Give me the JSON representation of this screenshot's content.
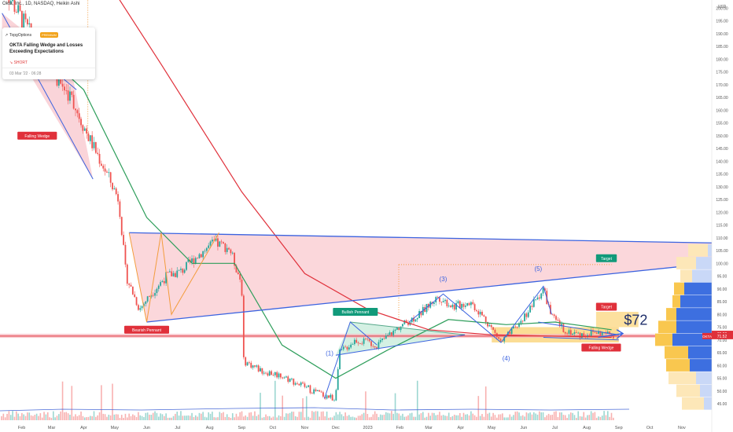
{
  "header": {
    "title": "Okta, Inc., 1D, NASDAQ, Heikin Ashi"
  },
  "idea_card": {
    "author": "TopgOptions",
    "badge": "PREMIUM",
    "title": "OKTA Falling Wedge and Losses Exceeding Expectations",
    "direction": "SHORT",
    "date": "03 Mar '22 · 06:28"
  },
  "colors": {
    "up": "#26a69a",
    "down": "#ef5350",
    "sma_fast": "#2e9e5b",
    "sma_slow": "#e0303a",
    "trend_line": "#3b63e0",
    "pink_fill": "#f9c9cf",
    "orange": "#f39c3c",
    "yellow_fill": "#f9c74f",
    "last_price_bg": "#e0303a",
    "blue_band": "#3d6fe0"
  },
  "chart_data": {
    "type": "candlestick",
    "symbol": "OKTA",
    "price_axis": {
      "unit": "USD",
      "range": [
        43,
        206
      ],
      "ticks": [
        45,
        50,
        55,
        60,
        65,
        70,
        75,
        80,
        85,
        90,
        95,
        100,
        105,
        110,
        115,
        120,
        125,
        130,
        135,
        140,
        145,
        150,
        155,
        160,
        165,
        170,
        175,
        180,
        185,
        190,
        195,
        200
      ]
    },
    "time_axis": {
      "labels": [
        "Feb",
        "Mar",
        "Apr",
        "May",
        "Jun",
        "Jul",
        "Aug",
        "Sep",
        "Oct",
        "Nov",
        "Dec",
        "2023",
        "Feb",
        "Mar",
        "Apr",
        "May",
        "Jun",
        "Jul",
        "Aug",
        "Sep",
        "Oct",
        "Nov"
      ]
    },
    "last_price": {
      "label": "OKTA",
      "price": "71.52",
      "secondary": "72.22"
    },
    "price_label": "$72",
    "close_path": [
      [
        "2022-01-25",
        200
      ],
      [
        "2022-02-15",
        185
      ],
      [
        "2022-03-10",
        170
      ],
      [
        "2022-03-20",
        165
      ],
      [
        "2022-04-05",
        150
      ],
      [
        "2022-04-20",
        138
      ],
      [
        "2022-05-05",
        125
      ],
      [
        "2022-05-12",
        95
      ],
      [
        "2022-05-25",
        82
      ],
      [
        "2022-06-05",
        88
      ],
      [
        "2022-06-20",
        95
      ],
      [
        "2022-07-05",
        97
      ],
      [
        "2022-07-20",
        103
      ],
      [
        "2022-08-05",
        108
      ],
      [
        "2022-08-20",
        106
      ],
      [
        "2022-09-01",
        92
      ],
      [
        "2022-09-02",
        62
      ],
      [
        "2022-09-20",
        58
      ],
      [
        "2022-10-10",
        56
      ],
      [
        "2022-10-25",
        53
      ],
      [
        "2022-11-15",
        49
      ],
      [
        "2022-11-30",
        47
      ],
      [
        "2022-12-05",
        65
      ],
      [
        "2022-12-20",
        70
      ],
      [
        "2023-01-10",
        68
      ],
      [
        "2023-01-31",
        75
      ],
      [
        "2023-02-20",
        80
      ],
      [
        "2023-03-10",
        87
      ],
      [
        "2023-03-25",
        83
      ],
      [
        "2023-04-10",
        85
      ],
      [
        "2023-04-25",
        78
      ],
      [
        "2023-05-10",
        69
      ],
      [
        "2023-05-25",
        75
      ],
      [
        "2023-06-10",
        84
      ],
      [
        "2023-06-20",
        90
      ],
      [
        "2023-06-28",
        79
      ],
      [
        "2023-07-10",
        74
      ],
      [
        "2023-07-25",
        72
      ],
      [
        "2023-08-10",
        73
      ],
      [
        "2023-08-25",
        72
      ]
    ],
    "series": [
      {
        "name": "",
        "kind": "sma_fast",
        "points": [
          [
            "2022-02-01",
            190
          ],
          [
            "2022-04-01",
            168
          ],
          [
            "2022-06-01",
            118
          ],
          [
            "2022-07-15",
            100
          ],
          [
            "2022-08-25",
            100
          ],
          [
            "2022-10-10",
            68
          ],
          [
            "2022-12-01",
            55
          ],
          [
            "2023-01-20",
            66
          ],
          [
            "2023-03-20",
            78
          ],
          [
            "2023-05-15",
            76
          ],
          [
            "2023-07-01",
            77
          ],
          [
            "2023-08-25",
            74
          ]
        ]
      },
      {
        "name": "",
        "kind": "sma_slow",
        "points": [
          [
            "2022-04-01",
            225
          ],
          [
            "2022-06-15",
            178
          ],
          [
            "2022-09-01",
            128
          ],
          [
            "2022-11-01",
            96
          ],
          [
            "2023-01-01",
            82
          ],
          [
            "2023-03-01",
            74
          ],
          [
            "2023-05-01",
            72
          ],
          [
            "2023-08-25",
            71
          ]
        ]
      }
    ],
    "annotations": [
      {
        "text": "Falling Wedge",
        "color": "#e0303a",
        "x": "2022-02-15",
        "y": 150
      },
      {
        "text": "Bearish Pennant",
        "color": "#e0303a",
        "x": "2022-06-01",
        "y": 74
      },
      {
        "text": "Bullish Pennant",
        "color": "#119a7a",
        "x": "2022-12-20",
        "y": 81
      },
      {
        "text": "Target",
        "color": "#119a7a",
        "x": "2023-08-20",
        "y": 102
      },
      {
        "text": "Target",
        "color": "#e0303a",
        "x": "2023-08-20",
        "y": 83
      },
      {
        "text": "Falling Wedge",
        "color": "#e0303a",
        "x": "2023-08-15",
        "y": 67
      },
      {
        "text": "(1)",
        "color": "#3b63e0",
        "x": "2022-11-25",
        "y": 64
      },
      {
        "text": "(3)",
        "color": "#3b63e0",
        "x": "2023-03-15",
        "y": 93
      },
      {
        "text": "(4)",
        "color": "#3b63e0",
        "x": "2023-05-15",
        "y": 62
      },
      {
        "text": "(5)",
        "color": "#3b63e0",
        "x": "2023-06-15",
        "y": 97
      }
    ],
    "grid": false,
    "legend": "none"
  }
}
